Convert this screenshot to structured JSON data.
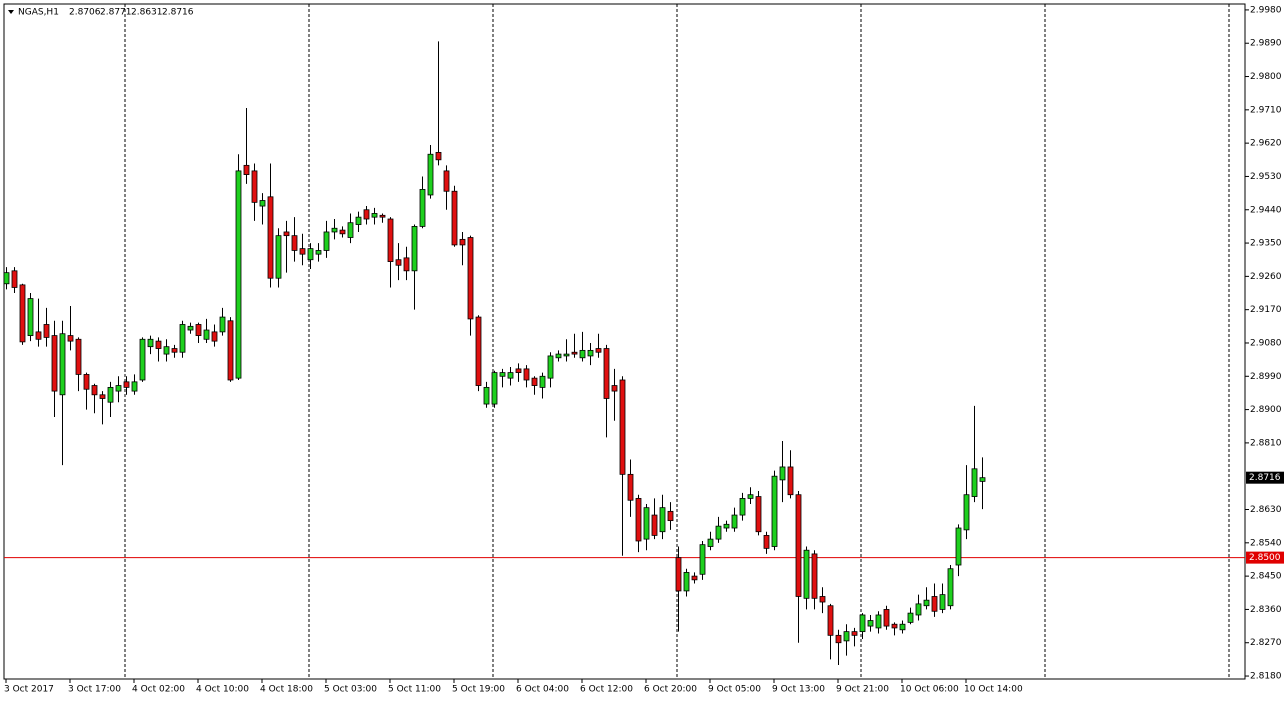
{
  "chart_data": {
    "type": "candlestick",
    "symbol": "NGAS,H1",
    "categories": [
      "3 Oct 2017",
      null,
      null,
      null,
      null,
      null,
      null,
      null,
      "3 Oct 17:00",
      null,
      null,
      null,
      null,
      null,
      null,
      null,
      "4 Oct 02:00",
      null,
      null,
      null,
      null,
      null,
      null,
      null,
      "4 Oct 10:00",
      null,
      null,
      null,
      null,
      null,
      null,
      null,
      "4 Oct 18:00",
      null,
      null,
      null,
      null,
      null,
      null,
      null,
      "5 Oct 03:00",
      null,
      null,
      null,
      null,
      null,
      null,
      null,
      "5 Oct 11:00",
      null,
      null,
      null,
      null,
      null,
      null,
      null,
      "5 Oct 19:00",
      null,
      null,
      null,
      null,
      null,
      null,
      null,
      "6 Oct 04:00",
      null,
      null,
      null,
      null,
      null,
      null,
      null,
      "6 Oct 12:00",
      null,
      null,
      null,
      null,
      null,
      null,
      null,
      "6 Oct 20:00",
      null,
      null,
      null,
      null,
      null,
      null,
      null,
      "9 Oct 05:00",
      null,
      null,
      null,
      null,
      null,
      null,
      null,
      "9 Oct 13:00",
      null,
      null,
      null,
      null,
      null,
      null,
      null,
      "9 Oct 21:00",
      null,
      null,
      null,
      null,
      null,
      null,
      null,
      "10 Oct 06:00",
      null,
      null,
      null,
      null,
      null,
      null,
      null,
      "10 Oct 14:00",
      null,
      null
    ],
    "open": [
      2.924,
      2.9275,
      2.9237,
      2.91,
      2.911,
      2.913,
      2.91,
      2.894,
      2.91,
      2.909,
      2.8995,
      2.8965,
      2.894,
      2.892,
      2.895,
      2.8975,
      2.895,
      2.898,
      2.907,
      2.9085,
      2.905,
      2.9065,
      2.9055,
      2.9115,
      2.913,
      2.909,
      2.911,
      2.911,
      2.914,
      2.8985,
      2.956,
      2.9545,
      2.945,
      2.9475,
      2.9255,
      2.938,
      2.937,
      2.9335,
      2.9305,
      2.932,
      2.933,
      2.938,
      2.9385,
      2.9365,
      2.94,
      2.944,
      2.942,
      2.9425,
      2.9415,
      2.9305,
      2.931,
      2.9275,
      2.9395,
      2.948,
      2.9595,
      2.9545,
      2.949,
      2.936,
      2.9365,
      2.915,
      2.8915,
      2.8915,
      2.899,
      2.8985,
      2.901,
      2.901,
      2.8985,
      2.896,
      2.8985,
      2.904,
      2.9045,
      2.9055,
      2.904,
      2.9045,
      2.9065,
      2.9065,
      2.8965,
      2.898,
      2.8725,
      2.866,
      2.855,
      2.8615,
      2.857,
      2.8625,
      2.85,
      2.841,
      2.845,
      2.8455,
      2.853,
      2.855,
      2.858,
      2.858,
      2.8615,
      2.866,
      2.8665,
      2.856,
      2.853,
      2.871,
      2.8745,
      2.867,
      2.839,
      2.851,
      2.8395,
      2.837,
      2.829,
      2.8275,
      2.83,
      2.83,
      2.8315,
      2.831,
      2.836,
      2.832,
      2.8305,
      2.8325,
      2.8345,
      2.837,
      2.8395,
      2.836,
      2.837,
      2.848,
      2.8575,
      2.8665,
      2.8706
    ],
    "high": [
      2.9285,
      2.9285,
      2.924,
      2.9215,
      2.92,
      2.9175,
      2.914,
      2.914,
      2.918,
      2.9095,
      2.9,
      2.897,
      2.895,
      2.8975,
      2.899,
      2.899,
      2.8995,
      2.9095,
      2.91,
      2.9095,
      2.909,
      2.9075,
      2.914,
      2.9135,
      2.9135,
      2.9145,
      2.913,
      2.9175,
      2.915,
      2.959,
      2.9715,
      2.9565,
      2.9485,
      2.9565,
      2.939,
      2.941,
      2.942,
      2.9375,
      2.935,
      2.935,
      2.941,
      2.9415,
      2.9395,
      2.943,
      2.9435,
      2.945,
      2.9445,
      2.943,
      2.942,
      2.935,
      2.934,
      2.94,
      2.953,
      2.9615,
      2.9895,
      2.956,
      2.9505,
      2.938,
      2.937,
      2.9155,
      2.8975,
      2.9005,
      2.901,
      2.9015,
      2.9025,
      2.902,
      2.899,
      2.9,
      2.9055,
      2.906,
      2.909,
      2.9105,
      2.911,
      2.908,
      2.9105,
      2.9075,
      2.901,
      2.899,
      2.8765,
      2.867,
      2.8645,
      2.866,
      2.867,
      2.865,
      2.853,
      2.847,
      2.846,
      2.8545,
      2.857,
      2.861,
      2.86,
      2.8635,
      2.8675,
      2.869,
      2.868,
      2.857,
      2.8735,
      2.8815,
      2.879,
      2.868,
      2.853,
      2.852,
      2.842,
      2.8375,
      2.8305,
      2.832,
      2.831,
      2.835,
      2.8345,
      2.8355,
      2.837,
      2.8325,
      2.833,
      2.8365,
      2.84,
      2.842,
      2.843,
      2.843,
      2.848,
      2.859,
      2.875,
      2.891,
      2.8771
    ],
    "low": [
      2.9225,
      2.9215,
      2.9075,
      2.9085,
      2.907,
      2.907,
      2.888,
      2.875,
      2.906,
      2.895,
      2.89,
      2.889,
      2.886,
      2.888,
      2.892,
      2.894,
      2.894,
      2.8975,
      2.905,
      2.903,
      2.903,
      2.904,
      2.904,
      2.9105,
      2.908,
      2.908,
      2.907,
      2.91,
      2.8975,
      2.898,
      2.951,
      2.941,
      2.94,
      2.923,
      2.923,
      2.927,
      2.93,
      2.929,
      2.928,
      2.93,
      2.931,
      2.936,
      2.9365,
      2.935,
      2.938,
      2.94,
      2.94,
      2.9405,
      2.923,
      2.925,
      2.925,
      2.917,
      2.939,
      2.947,
      2.956,
      2.944,
      2.934,
      2.929,
      2.91,
      2.895,
      2.8905,
      2.8905,
      2.896,
      2.8965,
      2.8975,
      2.896,
      2.894,
      2.893,
      2.896,
      2.903,
      2.903,
      2.904,
      2.903,
      2.902,
      2.904,
      2.8825,
      2.887,
      2.8505,
      2.861,
      2.8515,
      2.852,
      2.855,
      2.855,
      2.8575,
      2.83,
      2.8395,
      2.843,
      2.844,
      2.852,
      2.854,
      2.857,
      2.857,
      2.86,
      2.8645,
      2.856,
      2.851,
      2.852,
      2.865,
      2.866,
      2.827,
      2.836,
      2.836,
      2.835,
      2.8225,
      2.821,
      2.8235,
      2.826,
      2.828,
      2.83,
      2.8295,
      2.8305,
      2.829,
      2.8295,
      2.832,
      2.833,
      2.836,
      2.834,
      2.835,
      2.836,
      2.845,
      2.855,
      2.865,
      2.8631
    ],
    "close": [
      2.927,
      2.923,
      2.9083,
      2.92,
      2.909,
      2.9095,
      2.895,
      2.9105,
      2.9085,
      2.8995,
      2.8955,
      2.894,
      2.893,
      2.896,
      2.8965,
      2.896,
      2.8975,
      2.909,
      2.909,
      2.9065,
      2.907,
      2.9055,
      2.913,
      2.9125,
      2.91,
      2.9115,
      2.9085,
      2.915,
      2.898,
      2.9545,
      2.9535,
      2.946,
      2.9465,
      2.9255,
      2.937,
      2.937,
      2.933,
      2.932,
      2.9335,
      2.933,
      2.938,
      2.939,
      2.9375,
      2.9405,
      2.942,
      2.9415,
      2.943,
      2.942,
      2.93,
      2.929,
      2.9275,
      2.9395,
      2.9495,
      2.959,
      2.9575,
      2.949,
      2.9345,
      2.9345,
      2.9145,
      2.8965,
      2.896,
      2.9,
      2.9,
      2.9,
      2.9,
      2.898,
      2.8965,
      2.899,
      2.9045,
      2.905,
      2.905,
      2.905,
      2.906,
      2.906,
      2.9055,
      2.893,
      2.895,
      2.8725,
      2.8655,
      2.8545,
      2.8635,
      2.856,
      2.8635,
      2.86,
      2.841,
      2.846,
      2.844,
      2.8535,
      2.855,
      2.8585,
      2.859,
      2.8615,
      2.866,
      2.867,
      2.857,
      2.8525,
      2.872,
      2.8745,
      2.867,
      2.8395,
      2.852,
      2.839,
      2.838,
      2.829,
      2.827,
      2.83,
      2.829,
      2.8345,
      2.833,
      2.8345,
      2.8315,
      2.831,
      2.832,
      2.835,
      2.8375,
      2.8385,
      2.8355,
      2.84,
      2.847,
      2.858,
      2.867,
      2.874,
      2.8716
    ],
    "colors": {
      "up": "#1ed01e",
      "down": "#e01010",
      "wick": "#000000"
    },
    "ylim": [
      2.8172,
      2.9996
    ],
    "yticks": [
      {
        "value": 2.998,
        "label": "2.9980"
      },
      {
        "value": 2.989,
        "label": "2.9890"
      },
      {
        "value": 2.98,
        "label": "2.9800"
      },
      {
        "value": 2.971,
        "label": "2.9710"
      },
      {
        "value": 2.962,
        "label": "2.9620"
      },
      {
        "value": 2.953,
        "label": "2.9530"
      },
      {
        "value": 2.944,
        "label": "2.9440"
      },
      {
        "value": 2.935,
        "label": "2.9350"
      },
      {
        "value": 2.926,
        "label": "2.9260"
      },
      {
        "value": 2.917,
        "label": "2.9170"
      },
      {
        "value": 2.908,
        "label": "2.9080"
      },
      {
        "value": 2.899,
        "label": "2.8990"
      },
      {
        "value": 2.89,
        "label": "2.8900"
      },
      {
        "value": 2.881,
        "label": "2.8810"
      },
      {
        "value": 2.863,
        "label": "2.8630"
      },
      {
        "value": 2.854,
        "label": "2.8540"
      },
      {
        "value": 2.845,
        "label": "2.8450"
      },
      {
        "value": 2.836,
        "label": "2.8360"
      },
      {
        "value": 2.827,
        "label": "2.8270"
      },
      {
        "value": 2.818,
        "label": "2.8180"
      }
    ],
    "hline": {
      "value": 2.85,
      "label": "2.8500",
      "color": "#e00000"
    },
    "grid": false
  }
}
